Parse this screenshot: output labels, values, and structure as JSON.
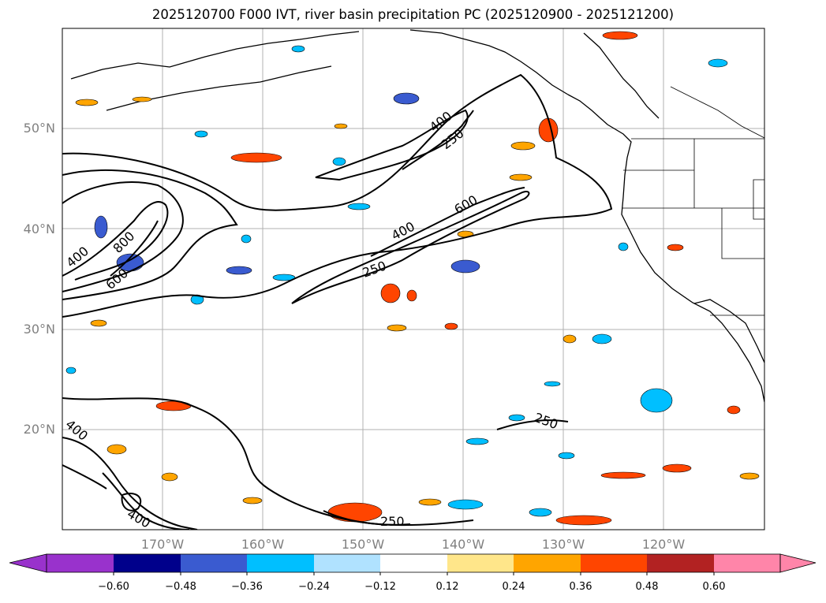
{
  "title": "2025120700 F000 IVT, river basin precipitation PC (2025120900 - 2025121200)",
  "map": {
    "lat_labels": [
      "50°N",
      "40°N",
      "30°N",
      "20°N"
    ],
    "lon_labels": [
      "170°W",
      "160°W",
      "150°W",
      "140°W",
      "130°W",
      "120°W"
    ],
    "contour_labels": [
      "400",
      "250",
      "600",
      "400",
      "250",
      "400",
      "800",
      "600",
      "400",
      "400",
      "250",
      "250"
    ]
  },
  "colorbar": {
    "ticks": [
      "−0.60",
      "−0.48",
      "−0.36",
      "−0.24",
      "−0.12",
      "0.12",
      "0.24",
      "0.36",
      "0.48",
      "0.60"
    ],
    "colors": [
      "#9932cc",
      "#00008b",
      "#3a5bd0",
      "#00bfff",
      "#b0e2ff",
      "#ffffff",
      "#ffe68a",
      "#ffa500",
      "#ff4500",
      "#b22222",
      "#ff85a9"
    ]
  },
  "colors": {
    "positive_fill": "#ffa500",
    "negative_fill": "#00bfff",
    "land_line": "#000000",
    "grid": "#b0b0b0"
  }
}
